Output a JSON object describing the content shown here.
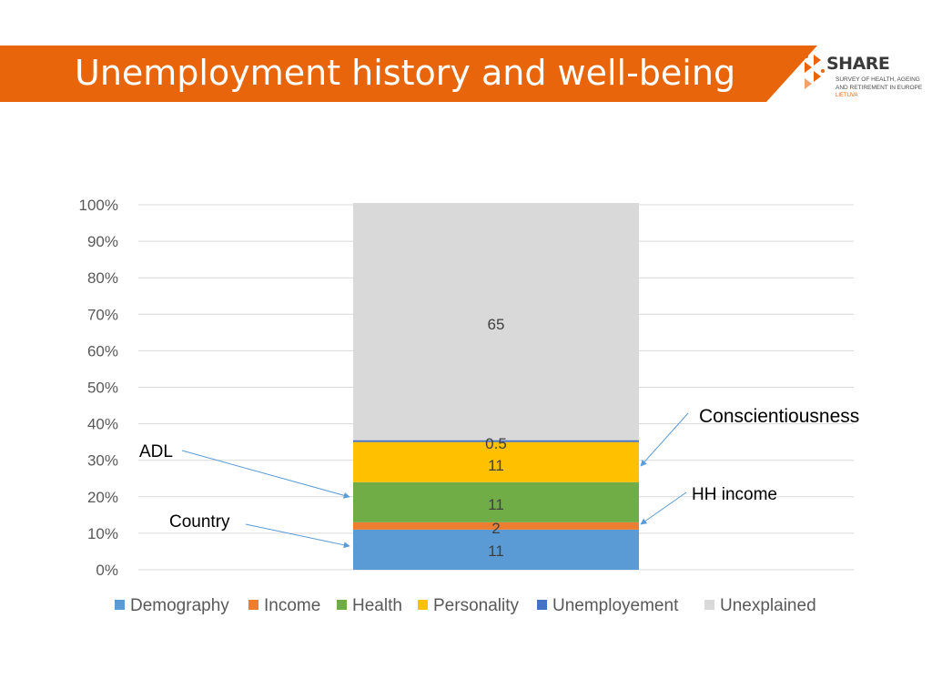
{
  "header": {
    "title": "Unemployment history and well-being",
    "bar_color": "#e8650b"
  },
  "logo": {
    "name": "SHARE",
    "line1": "SURVEY OF HEALTH, AGEING",
    "line2": "AND RETIREMENT IN EUROPE",
    "country": "LIETUVA"
  },
  "chart_data": {
    "type": "bar",
    "stacked": true,
    "categories": [
      ""
    ],
    "ylim": [
      0,
      100
    ],
    "yticks": [
      "0%",
      "10%",
      "20%",
      "30%",
      "40%",
      "50%",
      "60%",
      "70%",
      "80%",
      "90%",
      "100%"
    ],
    "grid": true,
    "legend": "bottom",
    "series": [
      {
        "name": "Demography",
        "values": [
          11
        ],
        "label": "11",
        "color": "#5b9bd5"
      },
      {
        "name": "Income",
        "values": [
          2
        ],
        "label": "2",
        "color": "#ed7d31"
      },
      {
        "name": "Health",
        "values": [
          11
        ],
        "label": "11",
        "color": "#70ad47"
      },
      {
        "name": "Personality",
        "values": [
          11
        ],
        "label": "11",
        "color": "#ffc000"
      },
      {
        "name": "Unemployement",
        "values": [
          0.5
        ],
        "label": "0.5",
        "color": "#4472c4"
      },
      {
        "name": "Unexplained",
        "values": [
          65
        ],
        "label": "65",
        "color": "#d9d9d9"
      }
    ],
    "annotations": [
      {
        "text": "Country",
        "target_series": "Demography"
      },
      {
        "text": "HH income",
        "target_series": "Income"
      },
      {
        "text": "ADL",
        "target_series": "Health"
      },
      {
        "text": "Conscientiousness",
        "target_series": "Personality"
      }
    ]
  }
}
